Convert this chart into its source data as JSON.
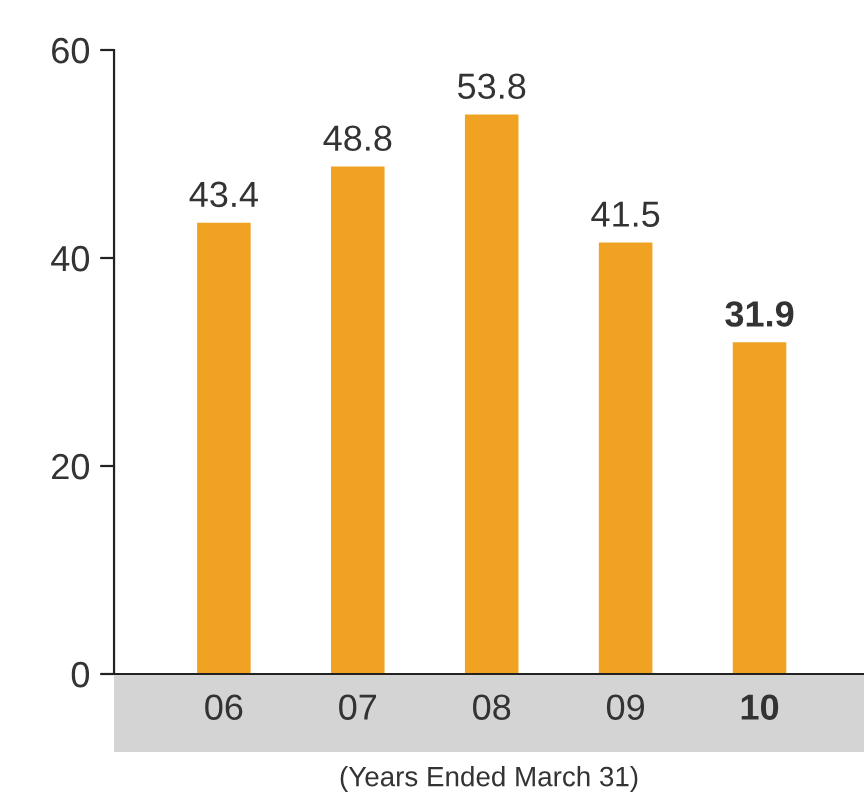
{
  "chart_data": {
    "type": "bar",
    "xlabel": "(Years Ended March 31)",
    "categories": [
      "06",
      "07",
      "08",
      "09",
      "10"
    ],
    "values": [
      43.4,
      48.8,
      53.8,
      41.5,
      31.9
    ],
    "color": "#f0a323",
    "ylim": [
      0,
      60
    ],
    "yticks": [
      0,
      20,
      40,
      60
    ],
    "data_labels": true,
    "grid": false
  }
}
